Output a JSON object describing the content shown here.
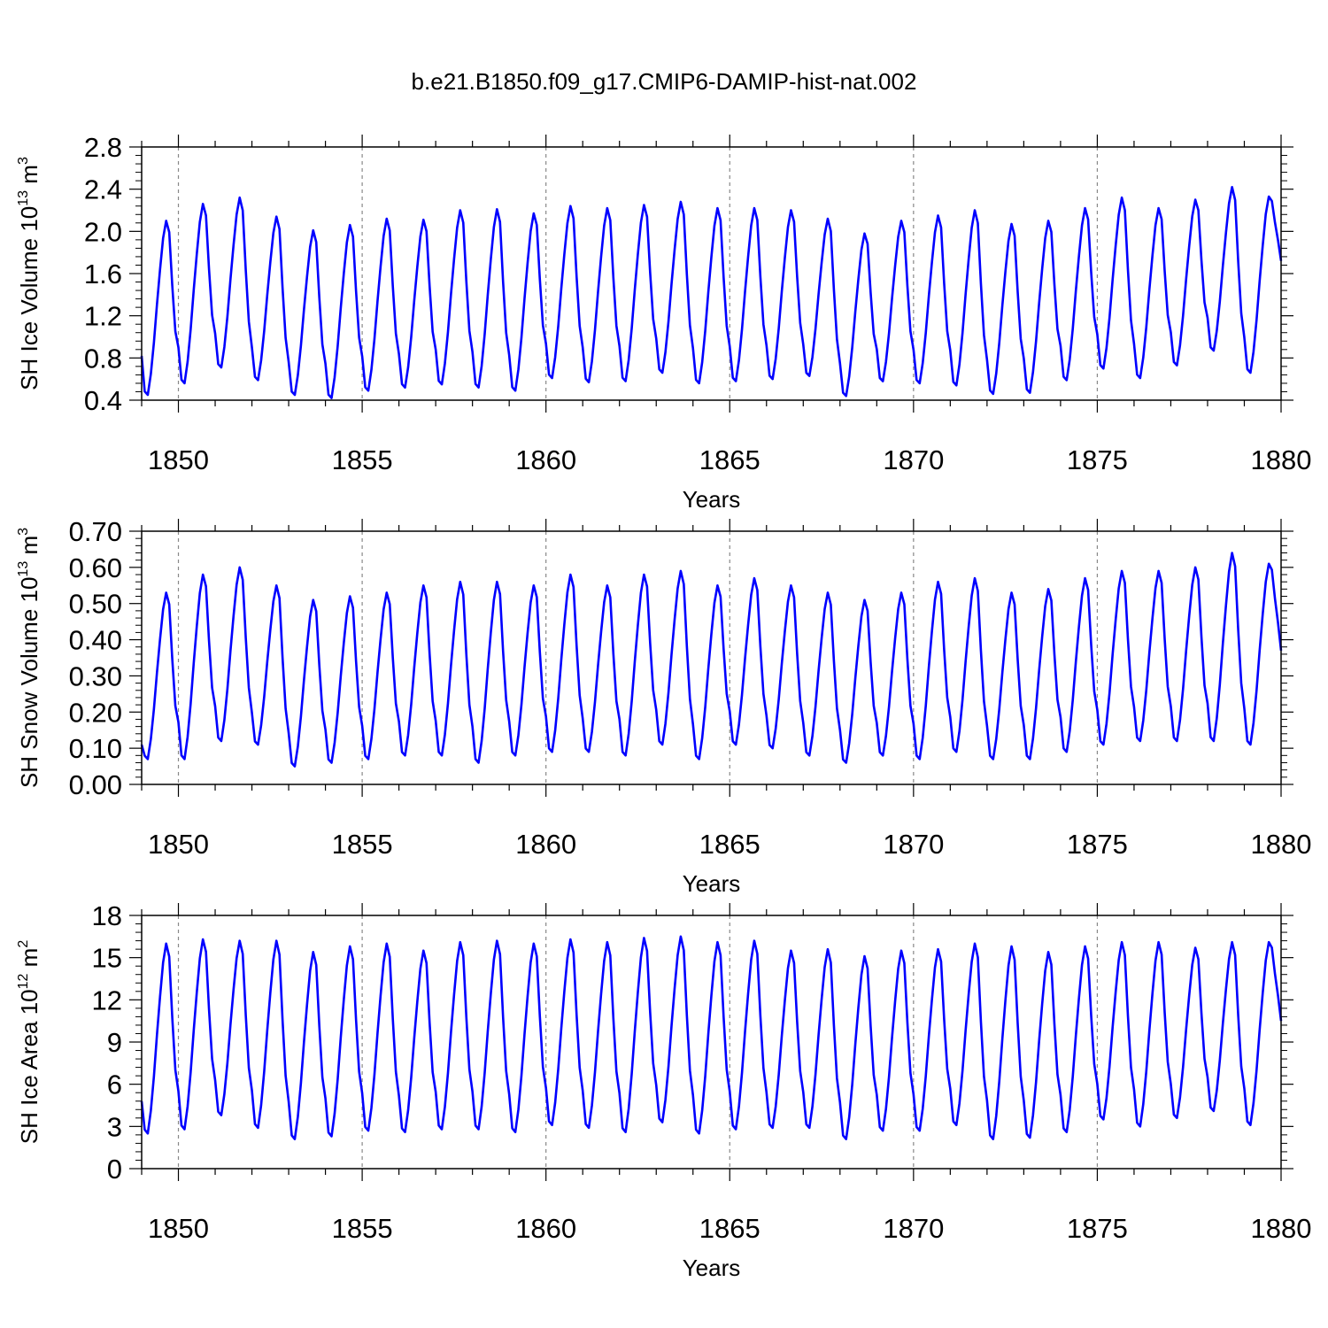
{
  "title": "b.e21.B1850.f09_g17.CMIP6-DAMIP-hist-nat.002",
  "line_color": "#0000ff",
  "chart_data": [
    {
      "type": "line",
      "ylabel_main": "SH Ice Volume 10",
      "ylabel_exp": "13",
      "ylabel_unit": " m",
      "ylabel_unit_exp": "3",
      "xlabel": "Years",
      "xlim": [
        1849,
        1880
      ],
      "ylim": [
        0.4,
        2.8
      ],
      "yticks": [
        0.4,
        0.8,
        1.2,
        1.6,
        2.0,
        2.4,
        2.8
      ],
      "yticklabels": [
        "0.4",
        "0.8",
        "1.2",
        "1.6",
        "2.0",
        "2.4",
        "2.8"
      ],
      "xticks": [
        1850,
        1855,
        1860,
        1865,
        1870,
        1875,
        1880
      ],
      "xticklabels": [
        "1850",
        "1855",
        "1860",
        "1865",
        "1870",
        "1875",
        "1880"
      ],
      "series": [
        {
          "start": 1849.0,
          "end": 1880.0,
          "start_value": 0.82,
          "end_value": 1.72,
          "peaks": [
            2.1,
            2.26,
            2.32,
            2.14,
            2.01,
            2.06,
            2.12,
            2.11,
            2.2,
            2.21,
            2.17,
            2.24,
            2.22,
            2.25,
            2.28,
            2.22,
            2.22,
            2.2,
            2.12,
            1.98,
            2.1,
            2.15,
            2.2,
            2.07,
            2.1,
            2.22,
            2.32,
            2.22,
            2.3,
            2.42,
            2.33
          ],
          "troughs": [
            0.45,
            0.56,
            0.71,
            0.59,
            0.45,
            0.42,
            0.49,
            0.52,
            0.55,
            0.52,
            0.49,
            0.61,
            0.57,
            0.58,
            0.66,
            0.56,
            0.58,
            0.6,
            0.63,
            0.44,
            0.58,
            0.56,
            0.54,
            0.46,
            0.47,
            0.59,
            0.7,
            0.61,
            0.73,
            0.87,
            0.66
          ]
        }
      ]
    },
    {
      "type": "line",
      "ylabel_main": "SH Snow Volume 10",
      "ylabel_exp": "13",
      "ylabel_unit": " m",
      "ylabel_unit_exp": "3",
      "xlabel": "Years",
      "xlim": [
        1849,
        1880
      ],
      "ylim": [
        0.0,
        0.7
      ],
      "yticks": [
        0.0,
        0.1,
        0.2,
        0.3,
        0.4,
        0.5,
        0.6,
        0.7
      ],
      "yticklabels": [
        "0.00",
        "0.10",
        "0.20",
        "0.30",
        "0.40",
        "0.50",
        "0.60",
        "0.70"
      ],
      "xticks": [
        1850,
        1855,
        1860,
        1865,
        1870,
        1875,
        1880
      ],
      "xticklabels": [
        "1850",
        "1855",
        "1860",
        "1865",
        "1870",
        "1875",
        "1880"
      ],
      "series": [
        {
          "start": 1849.0,
          "end": 1880.0,
          "start_value": 0.11,
          "end_value": 0.37,
          "peaks": [
            0.53,
            0.58,
            0.6,
            0.55,
            0.51,
            0.52,
            0.53,
            0.55,
            0.56,
            0.56,
            0.55,
            0.58,
            0.55,
            0.58,
            0.59,
            0.55,
            0.57,
            0.55,
            0.53,
            0.51,
            0.53,
            0.56,
            0.57,
            0.53,
            0.54,
            0.57,
            0.59,
            0.59,
            0.6,
            0.64,
            0.61
          ],
          "troughs": [
            0.07,
            0.07,
            0.12,
            0.11,
            0.05,
            0.06,
            0.07,
            0.08,
            0.08,
            0.06,
            0.08,
            0.09,
            0.09,
            0.08,
            0.11,
            0.07,
            0.11,
            0.1,
            0.08,
            0.06,
            0.08,
            0.07,
            0.09,
            0.07,
            0.07,
            0.09,
            0.11,
            0.12,
            0.12,
            0.12,
            0.11
          ]
        }
      ]
    },
    {
      "type": "line",
      "ylabel_main": "SH Ice Area 10",
      "ylabel_exp": "12",
      "ylabel_unit": " m",
      "ylabel_unit_exp": "2",
      "xlabel": "Years",
      "xlim": [
        1849,
        1880
      ],
      "ylim": [
        0,
        18
      ],
      "yticks": [
        0,
        3,
        6,
        9,
        12,
        15,
        18
      ],
      "yticklabels": [
        "0",
        "3",
        "6",
        "9",
        "12",
        "15",
        "18"
      ],
      "xticks": [
        1850,
        1855,
        1860,
        1865,
        1870,
        1875,
        1880
      ],
      "xticklabels": [
        "1850",
        "1855",
        "1860",
        "1865",
        "1870",
        "1875",
        "1880"
      ],
      "series": [
        {
          "start": 1849.0,
          "end": 1880.0,
          "start_value": 4.8,
          "end_value": 10.5,
          "peaks": [
            16.0,
            16.3,
            16.2,
            16.2,
            15.4,
            15.8,
            16.0,
            15.5,
            16.1,
            16.2,
            16.0,
            16.3,
            16.1,
            16.4,
            16.5,
            16.1,
            16.2,
            15.5,
            15.6,
            15.1,
            15.5,
            15.6,
            16.0,
            15.8,
            15.4,
            15.8,
            16.1,
            16.1,
            15.7,
            16.1,
            16.1
          ],
          "troughs": [
            2.5,
            2.8,
            3.8,
            2.9,
            2.1,
            2.3,
            2.7,
            2.6,
            2.8,
            2.8,
            2.6,
            3.1,
            2.9,
            2.6,
            3.3,
            2.5,
            2.8,
            2.9,
            2.9,
            2.1,
            2.7,
            2.7,
            3.1,
            2.1,
            2.2,
            2.6,
            3.5,
            3.0,
            3.6,
            4.1,
            3.1
          ]
        }
      ]
    }
  ]
}
